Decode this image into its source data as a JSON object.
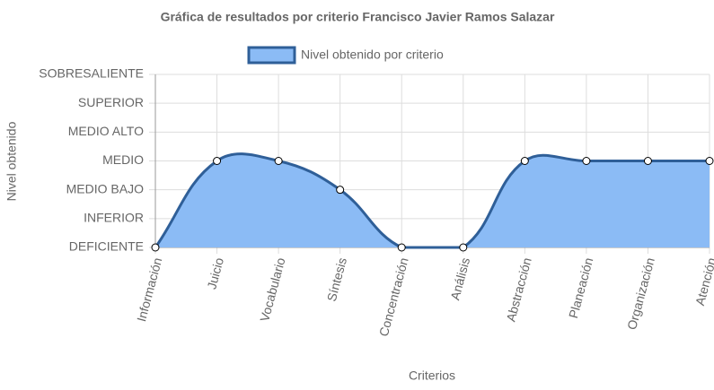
{
  "chart_data": {
    "type": "line",
    "title": "Gráfica de resultados por criterio Francisco Javier Ramos Salazar",
    "x_label": "Criterios",
    "y_label": "Nivel obtenido",
    "categories": [
      "Información",
      "Juicio",
      "Vocabulario",
      "Síntesis",
      "Concentración",
      "Análisis",
      "Abstracción",
      "Planeación",
      "Organización",
      "Atención"
    ],
    "series": [
      {
        "name": "Nivel obtenido por criterio",
        "color": "#2f5f98",
        "fill": "#8bbbf5",
        "values": [
          0,
          3,
          3,
          2,
          0,
          0,
          3,
          3,
          3,
          3
        ]
      }
    ],
    "ylim": [
      0,
      6
    ],
    "yticks": [
      {
        "value": 0,
        "label": "DEFICIENTE"
      },
      {
        "value": 1,
        "label": "INFERIOR"
      },
      {
        "value": 2,
        "label": "MEDIO BAJO"
      },
      {
        "value": 3,
        "label": "MEDIO"
      },
      {
        "value": 4,
        "label": "MEDIO ALTO"
      },
      {
        "value": 5,
        "label": "SUPERIOR"
      },
      {
        "value": 6,
        "label": "SOBRESALIENTE"
      }
    ],
    "grid": true,
    "legend": "top"
  }
}
